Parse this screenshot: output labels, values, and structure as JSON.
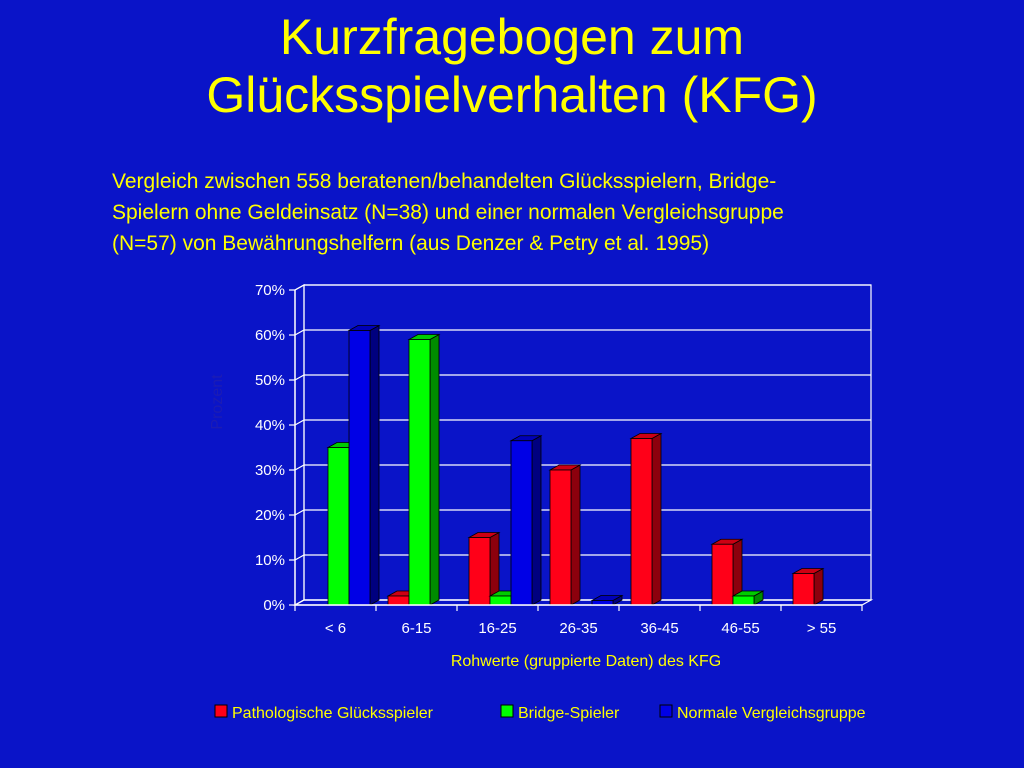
{
  "slide": {
    "title_lines": [
      "Kurzfragebogen zum",
      "Glücksspielverhalten (KFG)"
    ],
    "subtitle_lines": [
      "Vergleich zwischen 558 beratenen/behandelten Glücksspielern, Bridge-",
      "Spielern ohne Geldeinsatz (N=38) und einer normalen Vergleichsgruppe",
      "(N=57) von Bewährungshelfern (aus Denzer & Petry et al. 1995)"
    ]
  },
  "colors": {
    "background": "#0a14c8",
    "title": "#ffff00",
    "series": [
      "#ff0018",
      "#00ff00",
      "#0000e6"
    ]
  },
  "chart_data": {
    "type": "bar",
    "style": "3d-clustered",
    "xlabel": "Rohwerte (gruppierte Daten) des KFG",
    "ylabel": "Prozent",
    "ylim": [
      0,
      70
    ],
    "yticks": [
      "0%",
      "10%",
      "20%",
      "30%",
      "40%",
      "50%",
      "60%",
      "70%"
    ],
    "grid": true,
    "legend_position": "bottom",
    "categories": [
      "< 6",
      "6-15",
      "16-25",
      "26-35",
      "36-45",
      "46-55",
      "> 55"
    ],
    "series": [
      {
        "name": "Pathologische Glücksspieler",
        "values": [
          0,
          2,
          15,
          30,
          37,
          13.5,
          7
        ]
      },
      {
        "name": "Bridge-Spieler",
        "values": [
          35,
          59,
          2,
          0,
          0,
          2,
          0
        ]
      },
      {
        "name": "Normale Vergleichsgruppe",
        "values": [
          61,
          0,
          36.5,
          1,
          0,
          0,
          0
        ]
      }
    ]
  }
}
